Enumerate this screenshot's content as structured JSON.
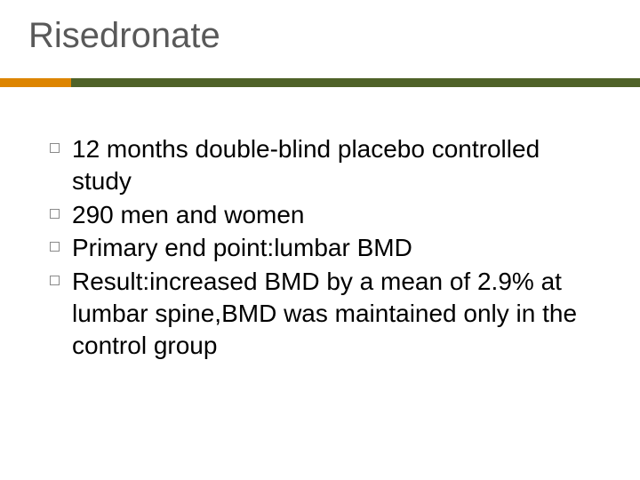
{
  "title": "Risedronate",
  "title_color": "#595959",
  "title_fontsize": 40,
  "divider": {
    "accent_color": "#dd8500",
    "accent_width": 80,
    "main_color": "#4f6228",
    "height": 10
  },
  "bullets": [
    "12 months double-blind placebo controlled study",
    "290 men and women",
    "Primary end point:lumbar BMD",
    "Result:increased BMD by a mean of 2.9% at lumbar spine,BMD was maintained only in the control group"
  ],
  "bullet_fontsize": 28,
  "bullet_text_color": "#000000",
  "bullet_marker_border": "#8a8a8a",
  "background_color": "#ffffff"
}
